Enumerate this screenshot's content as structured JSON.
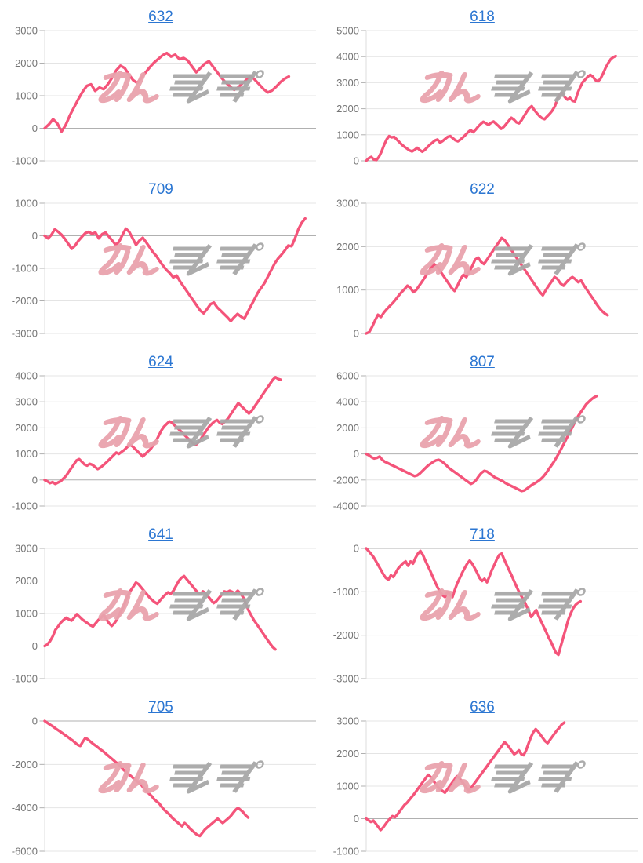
{
  "page": {
    "background": "#ffffff"
  },
  "styles": {
    "line_color": "#f4547a",
    "grid_color": "#e4e4e4",
    "zero_line_color": "#b0b0b0",
    "tick_label_color": "#757575",
    "title_link_color": "#2b76d2",
    "watermark_pink": "#e9a3ad",
    "watermark_gray": "#a8a8a8"
  },
  "watermark": {
    "text": "みんレポ",
    "part_pink": "みん",
    "part_gray": "レポ"
  },
  "chart_data": [
    {
      "type": "line",
      "title": "632",
      "ylim": [
        -1000,
        3000
      ],
      "yticks": [
        3000,
        2000,
        1000,
        0,
        -1000
      ],
      "grid": true,
      "legend": "none",
      "end_frac": 0.9,
      "values": [
        0,
        120,
        280,
        150,
        -100,
        100,
        400,
        650,
        900,
        1120,
        1300,
        1350,
        1150,
        1250,
        1200,
        1350,
        1550,
        1780,
        1920,
        1850,
        1650,
        1480,
        1390,
        1560,
        1720,
        1880,
        2020,
        2130,
        2240,
        2310,
        2200,
        2260,
        2120,
        2160,
        2080,
        1900,
        1720,
        1850,
        1980,
        2060,
        1890,
        1720,
        1550,
        1400,
        1290,
        1180,
        1260,
        1380,
        1500,
        1610,
        1480,
        1340,
        1200,
        1100,
        1160,
        1280,
        1420,
        1520,
        1590
      ]
    },
    {
      "type": "line",
      "title": "618",
      "ylim": [
        0,
        5000
      ],
      "yticks": [
        5000,
        4000,
        3000,
        2000,
        1000,
        0
      ],
      "grid": true,
      "legend": "none",
      "end_frac": 0.92,
      "values": [
        0,
        100,
        150,
        50,
        30,
        150,
        350,
        600,
        820,
        950,
        900,
        920,
        820,
        720,
        620,
        540,
        470,
        400,
        360,
        420,
        500,
        420,
        350,
        420,
        520,
        620,
        700,
        780,
        820,
        700,
        760,
        840,
        920,
        950,
        870,
        790,
        750,
        820,
        900,
        1000,
        1100,
        1180,
        1100,
        1200,
        1320,
        1420,
        1500,
        1440,
        1380,
        1460,
        1510,
        1420,
        1330,
        1230,
        1300,
        1420,
        1540,
        1650,
        1580,
        1480,
        1440,
        1560,
        1720,
        1880,
        2020,
        2100,
        1950,
        1830,
        1720,
        1640,
        1600,
        1700,
        1800,
        1920,
        2080,
        2350,
        2550,
        2600,
        2440,
        2350,
        2420,
        2300,
        2280,
        2600,
        2820,
        3020,
        3120,
        3230,
        3300,
        3230,
        3100,
        3050,
        3150,
        3350,
        3570,
        3750,
        3900,
        3980,
        4020
      ]
    },
    {
      "type": "line",
      "title": "709",
      "ylim": [
        -3000,
        1000
      ],
      "yticks": [
        1000,
        0,
        -1000,
        -2000,
        -3000
      ],
      "grid": true,
      "legend": "none",
      "end_frac": 0.96,
      "values": [
        0,
        -80,
        30,
        200,
        120,
        30,
        -100,
        -250,
        -400,
        -300,
        -150,
        -30,
        80,
        120,
        60,
        100,
        -80,
        50,
        100,
        -30,
        -150,
        -280,
        -180,
        30,
        220,
        120,
        -80,
        -280,
        -150,
        -60,
        -200,
        -350,
        -500,
        -620,
        -780,
        -920,
        -1050,
        -1150,
        -1280,
        -1220,
        -1400,
        -1550,
        -1700,
        -1850,
        -2000,
        -2150,
        -2300,
        -2380,
        -2250,
        -2100,
        -2050,
        -2200,
        -2300,
        -2400,
        -2500,
        -2620,
        -2500,
        -2400,
        -2480,
        -2550,
        -2350,
        -2150,
        -1950,
        -1750,
        -1600,
        -1450,
        -1250,
        -1050,
        -850,
        -700,
        -580,
        -450,
        -300,
        -320,
        -80,
        200,
        400,
        530
      ]
    },
    {
      "type": "line",
      "title": "622",
      "ylim": [
        0,
        3000
      ],
      "yticks": [
        3000,
        2000,
        1000,
        0
      ],
      "grid": true,
      "legend": "none",
      "end_frac": 0.89,
      "values": [
        0,
        30,
        150,
        300,
        430,
        380,
        480,
        560,
        630,
        700,
        780,
        870,
        950,
        1020,
        1100,
        1050,
        950,
        1000,
        1100,
        1200,
        1300,
        1400,
        1500,
        1600,
        1550,
        1450,
        1350,
        1250,
        1150,
        1050,
        980,
        1100,
        1250,
        1350,
        1300,
        1420,
        1550,
        1700,
        1750,
        1650,
        1600,
        1700,
        1800,
        1900,
        2000,
        2100,
        2200,
        2150,
        2050,
        1950,
        1850,
        1750,
        1650,
        1550,
        1450,
        1350,
        1250,
        1150,
        1050,
        950,
        880,
        1000,
        1100,
        1200,
        1300,
        1250,
        1150,
        1100,
        1180,
        1250,
        1300,
        1250,
        1180,
        1220,
        1100,
        1000,
        900,
        800,
        700,
        600,
        520,
        460,
        420
      ]
    },
    {
      "type": "line",
      "title": "624",
      "ylim": [
        -1000,
        4000
      ],
      "yticks": [
        4000,
        3000,
        2000,
        1000,
        0,
        -1000
      ],
      "grid": true,
      "legend": "none",
      "end_frac": 0.87,
      "values": [
        0,
        -50,
        -120,
        -80,
        -150,
        -100,
        -50,
        50,
        150,
        300,
        450,
        600,
        750,
        800,
        700,
        600,
        550,
        620,
        580,
        500,
        420,
        480,
        560,
        650,
        750,
        850,
        950,
        1050,
        1000,
        1080,
        1150,
        1250,
        1350,
        1300,
        1200,
        1100,
        1000,
        900,
        1000,
        1100,
        1200,
        1350,
        1500,
        1700,
        1900,
        2050,
        2150,
        2250,
        2200,
        2100,
        2000,
        1900,
        1800,
        1700,
        1600,
        1500,
        1400,
        1350,
        1450,
        1600,
        1750,
        1900,
        2050,
        2150,
        2250,
        2300,
        2200,
        2150,
        2250,
        2350,
        2500,
        2650,
        2800,
        2950,
        2850,
        2750,
        2650,
        2550,
        2650,
        2800,
        2950,
        3100,
        3250,
        3400,
        3550,
        3700,
        3850,
        3950,
        3880,
        3850
      ]
    },
    {
      "type": "line",
      "title": "807",
      "ylim": [
        -4000,
        6000
      ],
      "yticks": [
        6000,
        4000,
        2000,
        0,
        -2000,
        -4000
      ],
      "grid": true,
      "legend": "none",
      "end_frac": 0.85,
      "values": [
        0,
        -100,
        -250,
        -350,
        -300,
        -200,
        -450,
        -600,
        -700,
        -800,
        -900,
        -1000,
        -1100,
        -1200,
        -1300,
        -1400,
        -1500,
        -1600,
        -1700,
        -1650,
        -1500,
        -1300,
        -1100,
        -900,
        -750,
        -600,
        -500,
        -450,
        -550,
        -700,
        -900,
        -1100,
        -1250,
        -1400,
        -1550,
        -1700,
        -1850,
        -2000,
        -2150,
        -2300,
        -2200,
        -2000,
        -1700,
        -1450,
        -1300,
        -1350,
        -1500,
        -1650,
        -1800,
        -1900,
        -2000,
        -2100,
        -2250,
        -2350,
        -2450,
        -2550,
        -2650,
        -2750,
        -2850,
        -2800,
        -2650,
        -2500,
        -2350,
        -2250,
        -2100,
        -1950,
        -1750,
        -1500,
        -1200,
        -900,
        -600,
        -250,
        100,
        500,
        900,
        1300,
        1700,
        2100,
        2500,
        2900,
        3200,
        3500,
        3800,
        4000,
        4200,
        4350,
        4450
      ]
    },
    {
      "type": "line",
      "title": "641",
      "ylim": [
        -1000,
        3000
      ],
      "yticks": [
        3000,
        2000,
        1000,
        0,
        -1000
      ],
      "grid": true,
      "legend": "none",
      "end_frac": 0.85,
      "values": [
        0,
        50,
        150,
        300,
        500,
        600,
        720,
        800,
        870,
        820,
        780,
        870,
        980,
        900,
        820,
        760,
        700,
        640,
        600,
        700,
        800,
        870,
        950,
        820,
        700,
        620,
        700,
        820,
        1000,
        1150,
        1350,
        1550,
        1700,
        1820,
        1950,
        1900,
        1800,
        1700,
        1600,
        1500,
        1420,
        1350,
        1300,
        1400,
        1500,
        1580,
        1650,
        1600,
        1700,
        1850,
        2000,
        2100,
        2150,
        2050,
        1950,
        1850,
        1750,
        1650,
        1600,
        1680,
        1620,
        1520,
        1420,
        1320,
        1380,
        1480,
        1580,
        1680,
        1650,
        1700,
        1660,
        1620,
        1700,
        1620,
        1500,
        1300,
        1100,
        950,
        800,
        680,
        560,
        440,
        320,
        200,
        80,
        -30,
        -100
      ]
    },
    {
      "type": "line",
      "title": "718",
      "ylim": [
        -3000,
        0
      ],
      "yticks": [
        0,
        -1000,
        -2000,
        -3000
      ],
      "grid": true,
      "legend": "none",
      "end_frac": 0.79,
      "values": [
        0,
        -60,
        -130,
        -200,
        -300,
        -400,
        -500,
        -600,
        -680,
        -720,
        -620,
        -660,
        -560,
        -460,
        -400,
        -340,
        -300,
        -400,
        -300,
        -350,
        -220,
        -120,
        -60,
        -150,
        -280,
        -400,
        -520,
        -650,
        -780,
        -900,
        -1000,
        -1080,
        -1120,
        -1000,
        -1060,
        -1120,
        -950,
        -800,
        -680,
        -560,
        -450,
        -350,
        -280,
        -350,
        -450,
        -560,
        -680,
        -750,
        -700,
        -780,
        -650,
        -500,
        -380,
        -250,
        -150,
        -120,
        -250,
        -380,
        -500,
        -620,
        -750,
        -880,
        -1000,
        -1100,
        -1200,
        -1320,
        -1450,
        -1580,
        -1500,
        -1420,
        -1560,
        -1680,
        -1800,
        -1920,
        -2050,
        -2150,
        -2280,
        -2400,
        -2450,
        -2250,
        -2050,
        -1850,
        -1650,
        -1500,
        -1380,
        -1300,
        -1250,
        -1220
      ]
    },
    {
      "type": "line",
      "title": "705",
      "ylim": [
        -6000,
        0
      ],
      "yticks": [
        0,
        -2000,
        -4000,
        -6000
      ],
      "grid": true,
      "legend": "none",
      "end_frac": 0.75,
      "values": [
        0,
        -80,
        -160,
        -230,
        -320,
        -400,
        -480,
        -560,
        -650,
        -730,
        -820,
        -900,
        -1000,
        -1100,
        -1150,
        -950,
        -780,
        -850,
        -950,
        -1050,
        -1130,
        -1220,
        -1320,
        -1400,
        -1500,
        -1600,
        -1700,
        -1800,
        -1900,
        -2000,
        -2100,
        -2250,
        -2350,
        -2450,
        -2550,
        -2650,
        -2750,
        -2850,
        -2950,
        -3100,
        -3200,
        -3350,
        -3450,
        -3600,
        -3700,
        -3800,
        -3950,
        -4100,
        -4200,
        -4300,
        -4450,
        -4550,
        -4650,
        -4750,
        -4850,
        -4700,
        -4800,
        -4950,
        -5050,
        -5150,
        -5250,
        -5300,
        -5150,
        -5000,
        -4900,
        -4800,
        -4700,
        -4600,
        -4500,
        -4600,
        -4700,
        -4600,
        -4500,
        -4400,
        -4250,
        -4100,
        -4000,
        -4100,
        -4200,
        -4350,
        -4450
      ]
    },
    {
      "type": "line",
      "title": "636",
      "ylim": [
        -1000,
        3000
      ],
      "yticks": [
        3000,
        2000,
        1000,
        0,
        -1000
      ],
      "grid": true,
      "legend": "none",
      "end_frac": 0.73,
      "values": [
        0,
        -50,
        -100,
        -60,
        -150,
        -250,
        -350,
        -280,
        -180,
        -80,
        0,
        80,
        40,
        120,
        220,
        320,
        420,
        480,
        570,
        660,
        750,
        850,
        950,
        1050,
        1150,
        1250,
        1350,
        1280,
        1180,
        1080,
        980,
        900,
        850,
        800,
        900,
        1000,
        1100,
        1200,
        1300,
        1250,
        1150,
        1050,
        950,
        870,
        950,
        1050,
        1150,
        1250,
        1350,
        1450,
        1550,
        1650,
        1750,
        1850,
        1950,
        2050,
        2150,
        2250,
        2350,
        2280,
        2180,
        2080,
        1980,
        2030,
        2100,
        1980,
        1950,
        2100,
        2300,
        2500,
        2650,
        2750,
        2680,
        2580,
        2480,
        2380,
        2320,
        2420,
        2520,
        2620,
        2720,
        2800,
        2900,
        2950
      ]
    }
  ]
}
